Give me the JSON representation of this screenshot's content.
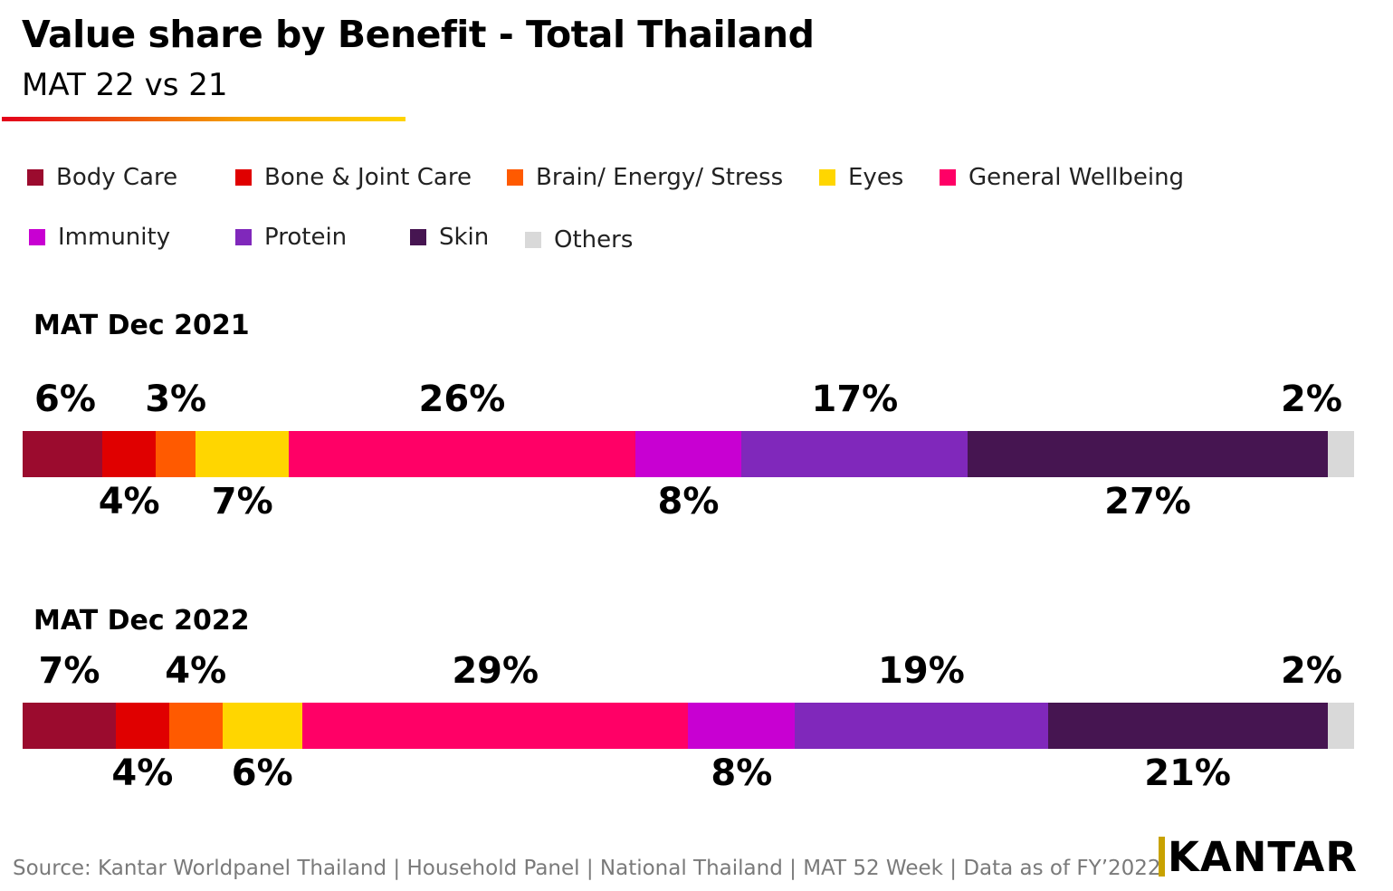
{
  "title": "Value share by Benefit - Total Thailand",
  "subtitle": "MAT 22 vs 21",
  "accent_colors": [
    "#e3001b",
    "#ffd400"
  ],
  "legend": [
    {
      "label": "Body Care",
      "color": "#9b0b2e"
    },
    {
      "label": "Bone & Joint Care",
      "color": "#e00000"
    },
    {
      "label": "Brain/ Energy/ Stress",
      "color": "#ff5a00"
    },
    {
      "label": "Eyes",
      "color": "#ffd600"
    },
    {
      "label": "General Wellbeing",
      "color": "#ff0066"
    },
    {
      "label": "Immunity",
      "color": "#c800d2"
    },
    {
      "label": "Protein",
      "color": "#8028bb"
    },
    {
      "label": "Skin",
      "color": "#461551"
    },
    {
      "label": "Others",
      "color": "#d9d9d9"
    }
  ],
  "chart_data": {
    "type": "bar",
    "stacked": true,
    "orientation": "horizontal",
    "unit": "%",
    "categories": [
      "MAT Dec 2021",
      "MAT Dec 2022"
    ],
    "series": [
      {
        "name": "Body Care",
        "values": [
          6,
          7
        ]
      },
      {
        "name": "Bone & Joint Care",
        "values": [
          4,
          4
        ]
      },
      {
        "name": "Brain/ Energy/ Stress",
        "values": [
          3,
          4
        ]
      },
      {
        "name": "Eyes",
        "values": [
          7,
          6
        ]
      },
      {
        "name": "General Wellbeing",
        "values": [
          26,
          29
        ]
      },
      {
        "name": "Immunity",
        "values": [
          8,
          8
        ]
      },
      {
        "name": "Protein",
        "values": [
          17,
          19
        ]
      },
      {
        "name": "Skin",
        "values": [
          27,
          21
        ]
      },
      {
        "name": "Others",
        "values": [
          2,
          2
        ]
      }
    ],
    "data_labels": [
      [
        "6%",
        "4%",
        "3%",
        "7%",
        "26%",
        "8%",
        "17%",
        "27%",
        "2%"
      ],
      [
        "7%",
        "4%",
        "4%",
        "6%",
        "29%",
        "8%",
        "19%",
        "21%",
        "2%"
      ]
    ]
  },
  "source": "Source: Kantar Worldpanel Thailand | Household Panel | National Thailand | MAT 52 Week | Data as of FY’2022",
  "logo": {
    "text": "KANTAR",
    "bar_color": "#c8a200"
  }
}
